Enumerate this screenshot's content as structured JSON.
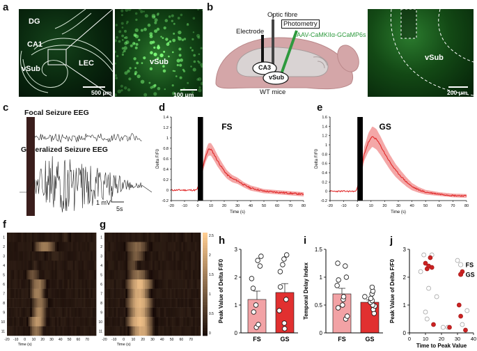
{
  "panels": {
    "a": "a",
    "b": "b",
    "c": "c",
    "d": "d",
    "e": "e",
    "f": "f",
    "g": "g",
    "h": "h",
    "i": "i",
    "j": "j"
  },
  "panel_a": {
    "left": {
      "labels": [
        "DG",
        "CA1",
        "vSub",
        "LEC"
      ],
      "scale": "500 μm"
    },
    "right": {
      "label": "vSub",
      "scale": "100 μm"
    }
  },
  "panel_b": {
    "optic_fibre": "Optic fibre",
    "photometry": "Photometry",
    "electrode": "Electrode",
    "virus": "AAV-CaMKIIα-GCaMP6s",
    "ca3": "CA3",
    "vsub": "vSub",
    "mice": "WT mice",
    "image": {
      "label": "vSub",
      "scale": "200 μm"
    }
  },
  "panel_c": {
    "focal_title": "Focal Seizure EEG",
    "generalized_title": "Generalized Seizure EEG",
    "scale_mv": "1 mV",
    "scale_s": "5s"
  },
  "chart_data": [
    {
      "panel": "d",
      "type": "line",
      "title": "FS",
      "xlabel": "Time (s)",
      "ylabel": "Delta F/F0",
      "xlim": [
        -20,
        80
      ],
      "ylim": [
        -0.2,
        1.4
      ],
      "xticks": [
        -20,
        -10,
        0,
        10,
        20,
        30,
        40,
        50,
        60,
        70,
        80
      ],
      "yticks": [
        -0.2,
        0,
        0.2,
        0.4,
        0.6,
        0.8,
        1,
        1.2,
        1.4
      ],
      "mean": [
        [
          -20,
          0
        ],
        [
          -10,
          0
        ],
        [
          -1,
          0
        ],
        [
          2,
          0.15
        ],
        [
          4,
          0.45
        ],
        [
          6,
          0.65
        ],
        [
          8,
          0.78
        ],
        [
          10,
          0.78
        ],
        [
          12,
          0.7
        ],
        [
          15,
          0.56
        ],
        [
          18,
          0.44
        ],
        [
          22,
          0.3
        ],
        [
          26,
          0.22
        ],
        [
          30,
          0.18
        ],
        [
          35,
          0.1
        ],
        [
          40,
          0.04
        ],
        [
          50,
          -0.02
        ],
        [
          60,
          -0.04
        ],
        [
          70,
          -0.06
        ],
        [
          80,
          -0.08
        ]
      ],
      "sem": [
        0,
        0,
        0,
        0.04,
        0.08,
        0.11,
        0.12,
        0.12,
        0.12,
        0.11,
        0.1,
        0.08,
        0.07,
        0.06,
        0.05,
        0.05,
        0.04,
        0.04,
        0.04,
        0.04
      ]
    },
    {
      "panel": "e",
      "type": "line",
      "title": "GS",
      "xlabel": "Time (s)",
      "ylabel": "Delta F/F0",
      "xlim": [
        -20,
        80
      ],
      "ylim": [
        -0.2,
        1.6
      ],
      "xticks": [
        -20,
        -10,
        0,
        10,
        20,
        30,
        40,
        50,
        60,
        70,
        80
      ],
      "yticks": [
        -0.2,
        0,
        0.2,
        0.4,
        0.6,
        0.8,
        1,
        1.2,
        1.4,
        1.6
      ],
      "mean": [
        [
          -20,
          0
        ],
        [
          -10,
          0
        ],
        [
          -1,
          0
        ],
        [
          2,
          0.3
        ],
        [
          5,
          0.8
        ],
        [
          8,
          1.05
        ],
        [
          11,
          1.18
        ],
        [
          14,
          1.12
        ],
        [
          17,
          0.98
        ],
        [
          20,
          0.82
        ],
        [
          24,
          0.62
        ],
        [
          28,
          0.45
        ],
        [
          32,
          0.32
        ],
        [
          36,
          0.2
        ],
        [
          40,
          0.1
        ],
        [
          45,
          0.03
        ],
        [
          50,
          -0.02
        ],
        [
          60,
          -0.06
        ],
        [
          70,
          -0.09
        ],
        [
          80,
          -0.1
        ]
      ],
      "sem": [
        0,
        0,
        0,
        0.05,
        0.15,
        0.2,
        0.22,
        0.22,
        0.2,
        0.18,
        0.16,
        0.14,
        0.12,
        0.1,
        0.08,
        0.06,
        0.05,
        0.04,
        0.04,
        0.04
      ]
    },
    {
      "panel": "f",
      "type": "heatmap",
      "xlabel": "Time (s)",
      "xticks": [
        -20,
        -10,
        0,
        10,
        20,
        30,
        40,
        50,
        60,
        70
      ],
      "rows": [
        "1",
        "2",
        "3",
        "4",
        "5",
        "6",
        "7",
        "8",
        "9",
        "10",
        "11"
      ]
    },
    {
      "panel": "g",
      "type": "heatmap",
      "xlabel": "Time (s)",
      "xticks": [
        -20,
        -10,
        0,
        10,
        20,
        30,
        40,
        50,
        60,
        70
      ],
      "rows": [
        "1",
        "2",
        "3",
        "4",
        "5",
        "6",
        "7",
        "8",
        "9",
        "10",
        "11"
      ],
      "colorbar_ticks": [
        "2.5",
        "2",
        "1.5",
        "1",
        "0.5",
        "0"
      ]
    },
    {
      "panel": "h",
      "type": "bar",
      "ylabel": "Peak Value of Delta F/F0",
      "categories": [
        "FS",
        "GS"
      ],
      "values": [
        1.2,
        1.45
      ],
      "sem": [
        0.3,
        0.32
      ],
      "ylim": [
        0,
        3
      ],
      "yticks": [
        0,
        1,
        2,
        3
      ],
      "points": [
        [
          0.2,
          0.3,
          0.75,
          1.0,
          1.6,
          1.95,
          2.4,
          2.6,
          2.75
        ],
        [
          0.15,
          0.35,
          0.8,
          1.2,
          1.65,
          2.2,
          2.45,
          2.65,
          2.8
        ]
      ]
    },
    {
      "panel": "i",
      "type": "bar",
      "ylabel": "Temporal Delay Index",
      "categories": [
        "FS",
        "GS"
      ],
      "values": [
        0.7,
        0.55
      ],
      "sem": [
        0.1,
        0.04
      ],
      "ylim": [
        0,
        1.5
      ],
      "yticks": [
        0,
        0.5,
        1,
        1.5
      ],
      "points": [
        [
          0.25,
          0.3,
          0.45,
          0.5,
          0.6,
          0.65,
          0.85,
          0.95,
          1.0,
          1.2,
          1.25
        ],
        [
          0.35,
          0.42,
          0.48,
          0.5,
          0.55,
          0.58,
          0.62,
          0.65,
          0.7,
          0.75,
          0.82
        ]
      ]
    },
    {
      "panel": "j",
      "type": "scatter",
      "xlabel": "Time to Peak Value",
      "ylabel": "Peak Value of Delta F/F0",
      "xlim": [
        0,
        40
      ],
      "ylim": [
        0,
        3
      ],
      "xticks": [
        0,
        10,
        20,
        30,
        40
      ],
      "yticks": [
        0,
        1,
        2,
        3
      ],
      "series": [
        {
          "name": "FS",
          "color": "#ffffff",
          "points": [
            [
              7,
              2.2
            ],
            [
              9,
              2.8
            ],
            [
              10,
              0.75
            ],
            [
              11,
              0.5
            ],
            [
              12,
              1.6
            ],
            [
              14,
              2.8
            ],
            [
              17,
              1.3
            ],
            [
              21,
              0.2
            ],
            [
              24,
              0.2
            ],
            [
              30,
              2.6
            ],
            [
              33,
              0.3
            ],
            [
              36,
              0.8
            ]
          ]
        },
        {
          "name": "GS",
          "color": "#cc2222",
          "points": [
            [
              10,
              2.5
            ],
            [
              11,
              2.3
            ],
            [
              12,
              2.4
            ],
            [
              13,
              2.7
            ],
            [
              14,
              2.35
            ],
            [
              15,
              0.3
            ],
            [
              25,
              0.2
            ],
            [
              31,
              1.0
            ],
            [
              32,
              0.6
            ],
            [
              33,
              2.2
            ],
            [
              35,
              0.1
            ]
          ]
        }
      ]
    }
  ]
}
